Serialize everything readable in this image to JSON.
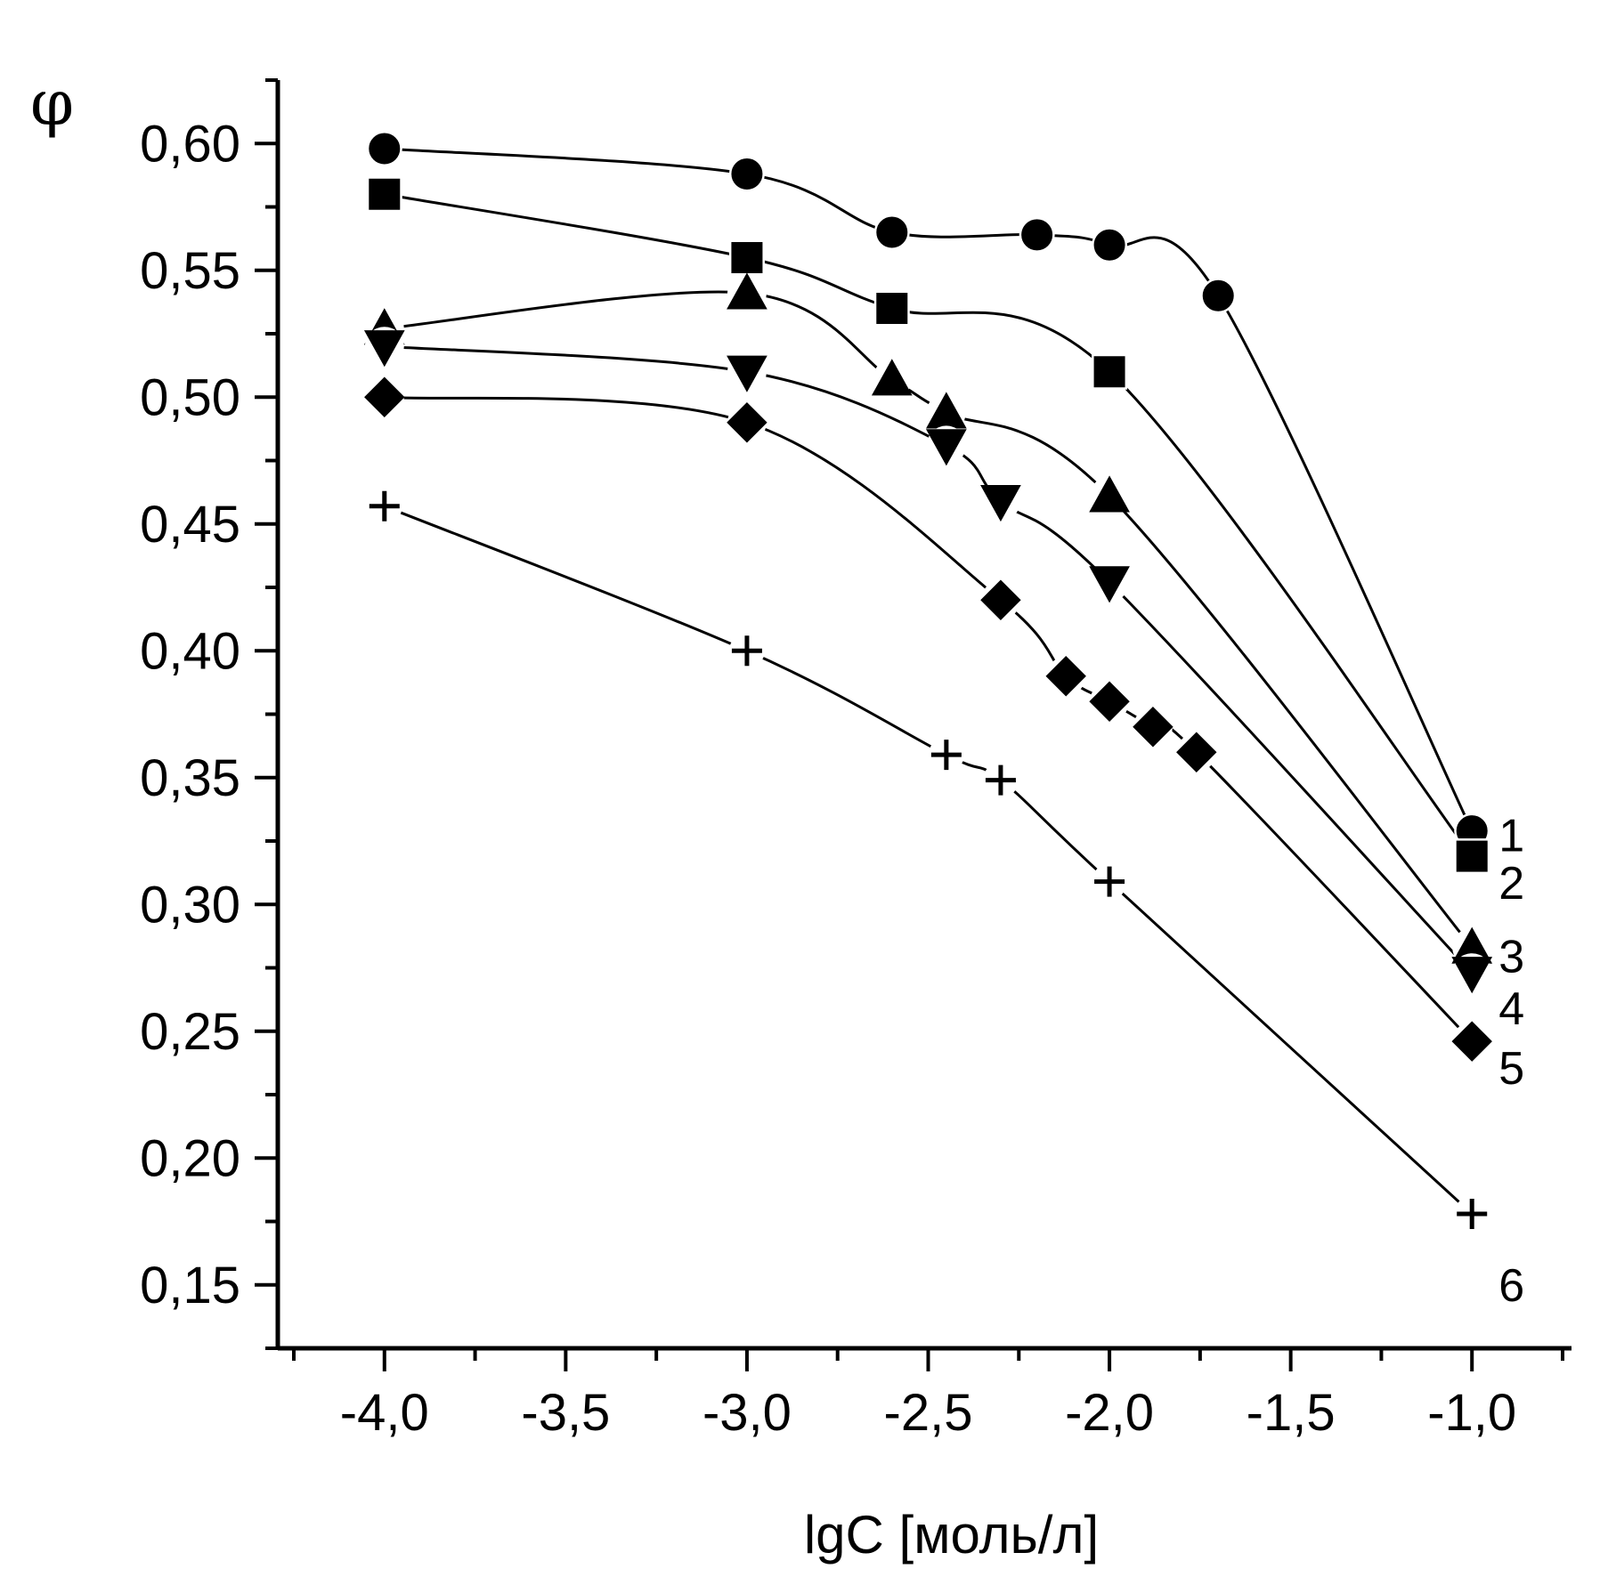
{
  "chart_data": {
    "type": "line",
    "xlabel": "lgC [моль/л]",
    "ylabel": "φ",
    "xlim": [
      -4.25,
      -0.75
    ],
    "ylim": [
      0.125,
      0.625
    ],
    "x_ticks": [
      -4.0,
      -3.5,
      -3.0,
      -2.5,
      -2.0,
      -1.5,
      -1.0
    ],
    "x_tick_labels": [
      "-4,0",
      "-3,5",
      "-3,0",
      "-2,5",
      "-2,0",
      "-1,5",
      "-1,0"
    ],
    "y_ticks": [
      0.15,
      0.2,
      0.25,
      0.3,
      0.35,
      0.4,
      0.45,
      0.5,
      0.55,
      0.6
    ],
    "y_tick_labels": [
      "0,15",
      "0,20",
      "0,25",
      "0,30",
      "0,35",
      "0,40",
      "0,45",
      "0,50",
      "0,55",
      "0,60"
    ],
    "grid": false,
    "legend": "none",
    "series": [
      {
        "name": "1",
        "marker": "circle",
        "points": [
          [
            -4.0,
            0.598
          ],
          [
            -3.0,
            0.588
          ],
          [
            -2.6,
            0.565
          ],
          [
            -2.2,
            0.564
          ],
          [
            -2.0,
            0.56
          ],
          [
            -1.7,
            0.54
          ],
          [
            -1.0,
            0.329
          ]
        ]
      },
      {
        "name": "2",
        "marker": "square",
        "points": [
          [
            -4.0,
            0.58
          ],
          [
            -3.0,
            0.555
          ],
          [
            -2.6,
            0.535
          ],
          [
            -2.0,
            0.51
          ],
          [
            -1.0,
            0.319
          ]
        ]
      },
      {
        "name": "3",
        "marker": "triangle-up",
        "points": [
          [
            -4.0,
            0.527
          ],
          [
            -3.0,
            0.541
          ],
          [
            -2.6,
            0.507
          ],
          [
            -2.45,
            0.494
          ],
          [
            -2.0,
            0.461
          ],
          [
            -1.0,
            0.283
          ]
        ]
      },
      {
        "name": "4",
        "marker": "triangle-down",
        "points": [
          [
            -4.0,
            0.52
          ],
          [
            -3.0,
            0.51
          ],
          [
            -2.45,
            0.481
          ],
          [
            -2.3,
            0.459
          ],
          [
            -2.0,
            0.427
          ],
          [
            -1.0,
            0.273
          ]
        ]
      },
      {
        "name": "5",
        "marker": "diamond",
        "points": [
          [
            -4.0,
            0.5
          ],
          [
            -3.0,
            0.49
          ],
          [
            -2.3,
            0.42
          ],
          [
            -2.12,
            0.39
          ],
          [
            -2.0,
            0.38
          ],
          [
            -1.88,
            0.37
          ],
          [
            -1.76,
            0.36
          ],
          [
            -1.0,
            0.246
          ]
        ]
      },
      {
        "name": "6",
        "marker": "plus",
        "points": [
          [
            -4.0,
            0.457
          ],
          [
            -3.0,
            0.4
          ],
          [
            -2.45,
            0.359
          ],
          [
            -2.3,
            0.349
          ],
          [
            -2.0,
            0.309
          ],
          [
            -1.0,
            0.178
          ]
        ]
      }
    ]
  }
}
